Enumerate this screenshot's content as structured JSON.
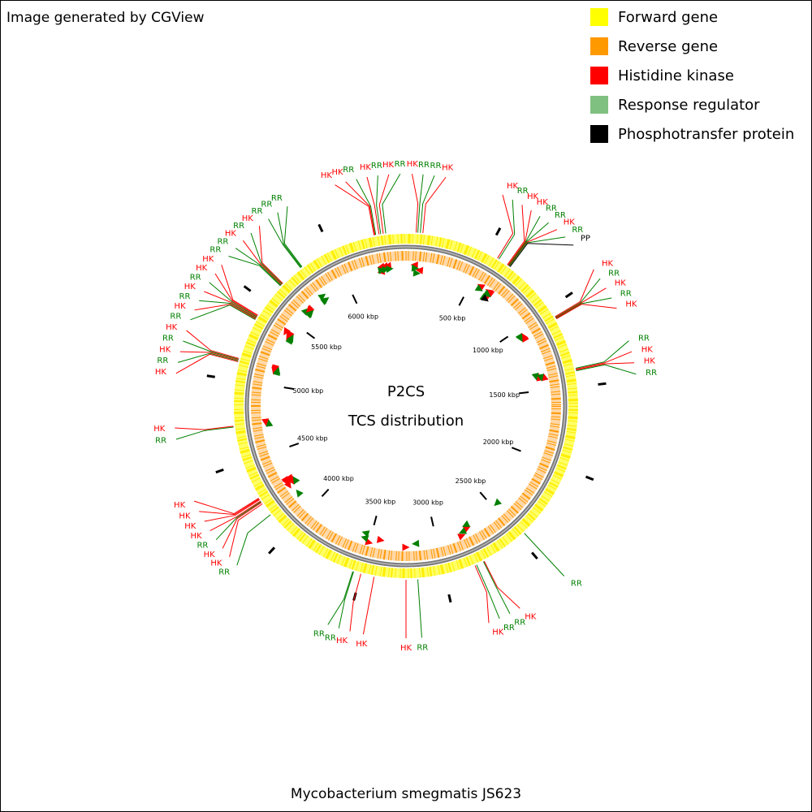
{
  "header": {
    "title": "Image generated by CGView"
  },
  "legend": [
    {
      "label": "Forward gene",
      "color": "#ffff00"
    },
    {
      "label": "Reverse gene",
      "color": "#ff9900"
    },
    {
      "label": "Histidine kinase",
      "color": "#ff0000"
    },
    {
      "label": "Response regulator",
      "color": "#7fbf7f"
    },
    {
      "label": "Phosphotransfer protein",
      "color": "#000000"
    }
  ],
  "center": {
    "title": "P2CS",
    "subtitle": "TCS distribution"
  },
  "footer": {
    "organism": "Mycobacterium smegmatis JS623"
  },
  "map": {
    "range": [
      0,
      6460
    ],
    "ticks": [
      {
        "value": 500,
        "label": "500 kbp"
      },
      {
        "value": 1000,
        "label": "1000 kbp"
      },
      {
        "value": 1500,
        "label": "1500 kbp"
      },
      {
        "value": 2000,
        "label": "2000 kbp"
      },
      {
        "value": 2500,
        "label": "2500 kbp"
      },
      {
        "value": 3000,
        "label": "3000 kbp"
      },
      {
        "value": 3500,
        "label": "3500 kbp"
      },
      {
        "value": 4000,
        "label": "4000 kbp"
      },
      {
        "value": 4500,
        "label": "4500 kbp"
      },
      {
        "value": 5000,
        "label": "5000 kbp"
      },
      {
        "value": 5500,
        "label": "5500 kbp"
      },
      {
        "value": 6000,
        "label": "6000 kbp"
      }
    ],
    "features": [
      {
        "label": "HK",
        "position": 60,
        "strand": "-",
        "color": "#ff0000"
      },
      {
        "label": "RR",
        "position": 70,
        "strand": "+",
        "color": "#008000"
      },
      {
        "label": "RR",
        "position": 85,
        "strand": "+",
        "color": "#008000"
      },
      {
        "label": "HK",
        "position": 100,
        "strand": "-",
        "color": "#ff0000"
      },
      {
        "label": "HK",
        "position": 570,
        "strand": "-",
        "color": "#ff0000"
      },
      {
        "label": "RR",
        "position": 580,
        "strand": "+",
        "color": "#008000"
      },
      {
        "label": "HK",
        "position": 640,
        "strand": "-",
        "color": "#ff0000"
      },
      {
        "label": "HK",
        "position": 645,
        "strand": "-",
        "color": "#ff0000"
      },
      {
        "label": "RR",
        "position": 648,
        "strand": "+",
        "color": "#008000"
      },
      {
        "label": "RR",
        "position": 650,
        "strand": "+",
        "color": "#008000"
      },
      {
        "label": "HK",
        "position": 652,
        "strand": "-",
        "color": "#ff0000"
      },
      {
        "label": "RR",
        "position": 655,
        "strand": "+",
        "color": "#008000"
      },
      {
        "label": "PP",
        "position": 660,
        "strand": "+",
        "color": "#000000"
      },
      {
        "label": "HK",
        "position": 1060,
        "strand": "-",
        "color": "#ff0000"
      },
      {
        "label": "RR",
        "position": 1065,
        "strand": "+",
        "color": "#008000"
      },
      {
        "label": "HK",
        "position": 1068,
        "strand": "-",
        "color": "#ff0000"
      },
      {
        "label": "RR",
        "position": 1072,
        "strand": "+",
        "color": "#008000"
      },
      {
        "label": "HK",
        "position": 1075,
        "strand": "-",
        "color": "#ff0000"
      },
      {
        "label": "RR",
        "position": 1390,
        "strand": "+",
        "color": "#008000"
      },
      {
        "label": "HK",
        "position": 1395,
        "strand": "-",
        "color": "#ff0000"
      },
      {
        "label": "HK",
        "position": 1400,
        "strand": "-",
        "color": "#ff0000"
      },
      {
        "label": "RR",
        "position": 1405,
        "strand": "+",
        "color": "#008000"
      },
      {
        "label": "RR",
        "position": 2460,
        "strand": "+",
        "color": "#008000"
      },
      {
        "label": "HK",
        "position": 2750,
        "strand": "-",
        "color": "#ff0000"
      },
      {
        "label": "RR",
        "position": 2755,
        "strand": "+",
        "color": "#008000"
      },
      {
        "label": "RR",
        "position": 2800,
        "strand": "+",
        "color": "#008000"
      },
      {
        "label": "HK",
        "position": 2810,
        "strand": "-",
        "color": "#ff0000"
      },
      {
        "label": "RR",
        "position": 3160,
        "strand": "+",
        "color": "#008000"
      },
      {
        "label": "HK",
        "position": 3230,
        "strand": "-",
        "color": "#ff0000"
      },
      {
        "label": "HK",
        "position": 3420,
        "strand": "-",
        "color": "#ff0000"
      },
      {
        "label": "HK",
        "position": 3500,
        "strand": "-",
        "color": "#ff0000"
      },
      {
        "label": "RR",
        "position": 3545,
        "strand": "+",
        "color": "#008000"
      },
      {
        "label": "RR",
        "position": 3550,
        "strand": "+",
        "color": "#008000"
      },
      {
        "label": "RR",
        "position": 4150,
        "strand": "+",
        "color": "#008000"
      },
      {
        "label": "HK",
        "position": 4230,
        "strand": "-",
        "color": "#ff0000"
      },
      {
        "label": "HK",
        "position": 4240,
        "strand": "-",
        "color": "#ff0000"
      },
      {
        "label": "RR",
        "position": 4245,
        "strand": "+",
        "color": "#008000"
      },
      {
        "label": "HK",
        "position": 4250,
        "strand": "-",
        "color": "#ff0000"
      },
      {
        "label": "HK",
        "position": 4260,
        "strand": "-",
        "color": "#ff0000"
      },
      {
        "label": "HK",
        "position": 4265,
        "strand": "-",
        "color": "#ff0000"
      },
      {
        "label": "HK",
        "position": 4270,
        "strand": "-",
        "color": "#ff0000"
      },
      {
        "label": "RR",
        "position": 4720,
        "strand": "+",
        "color": "#008000"
      },
      {
        "label": "HK",
        "position": 4725,
        "strand": "-",
        "color": "#ff0000"
      },
      {
        "label": "HK",
        "position": 5110,
        "strand": "-",
        "color": "#ff0000"
      },
      {
        "label": "RR",
        "position": 5115,
        "strand": "+",
        "color": "#008000"
      },
      {
        "label": "HK",
        "position": 5120,
        "strand": "-",
        "color": "#ff0000"
      },
      {
        "label": "RR",
        "position": 5125,
        "strand": "+",
        "color": "#008000"
      },
      {
        "label": "HK",
        "position": 5130,
        "strand": "-",
        "color": "#ff0000"
      },
      {
        "label": "RR",
        "position": 5380,
        "strand": "+",
        "color": "#008000"
      },
      {
        "label": "HK",
        "position": 5385,
        "strand": "-",
        "color": "#ff0000"
      },
      {
        "label": "RR",
        "position": 5390,
        "strand": "+",
        "color": "#008000"
      },
      {
        "label": "HK",
        "position": 5395,
        "strand": "-",
        "color": "#ff0000"
      },
      {
        "label": "RR",
        "position": 5400,
        "strand": "+",
        "color": "#008000"
      },
      {
        "label": "HK",
        "position": 5405,
        "strand": "-",
        "color": "#ff0000"
      },
      {
        "label": "HK",
        "position": 5410,
        "strand": "-",
        "color": "#ff0000"
      },
      {
        "label": "RR",
        "position": 5630,
        "strand": "+",
        "color": "#008000"
      },
      {
        "label": "RR",
        "position": 5635,
        "strand": "+",
        "color": "#008000"
      },
      {
        "label": "HK",
        "position": 5640,
        "strand": "-",
        "color": "#ff0000"
      },
      {
        "label": "RR",
        "position": 5645,
        "strand": "+",
        "color": "#008000"
      },
      {
        "label": "HK",
        "position": 5650,
        "strand": "-",
        "color": "#ff0000"
      },
      {
        "label": "RR",
        "position": 5790,
        "strand": "+",
        "color": "#008000"
      },
      {
        "label": "RR",
        "position": 5795,
        "strand": "+",
        "color": "#008000"
      },
      {
        "label": "RR",
        "position": 5800,
        "strand": "+",
        "color": "#008000"
      },
      {
        "label": "HK",
        "position": 6270,
        "strand": "-",
        "color": "#ff0000"
      },
      {
        "label": "HK",
        "position": 6275,
        "strand": "-",
        "color": "#ff0000"
      },
      {
        "label": "RR",
        "position": 6280,
        "strand": "+",
        "color": "#008000"
      },
      {
        "label": "HK",
        "position": 6300,
        "strand": "-",
        "color": "#ff0000"
      },
      {
        "label": "RR",
        "position": 6310,
        "strand": "+",
        "color": "#008000"
      },
      {
        "label": "HK",
        "position": 6325,
        "strand": "-",
        "color": "#ff0000"
      },
      {
        "label": "RR",
        "position": 6340,
        "strand": "+",
        "color": "#008000"
      }
    ]
  }
}
